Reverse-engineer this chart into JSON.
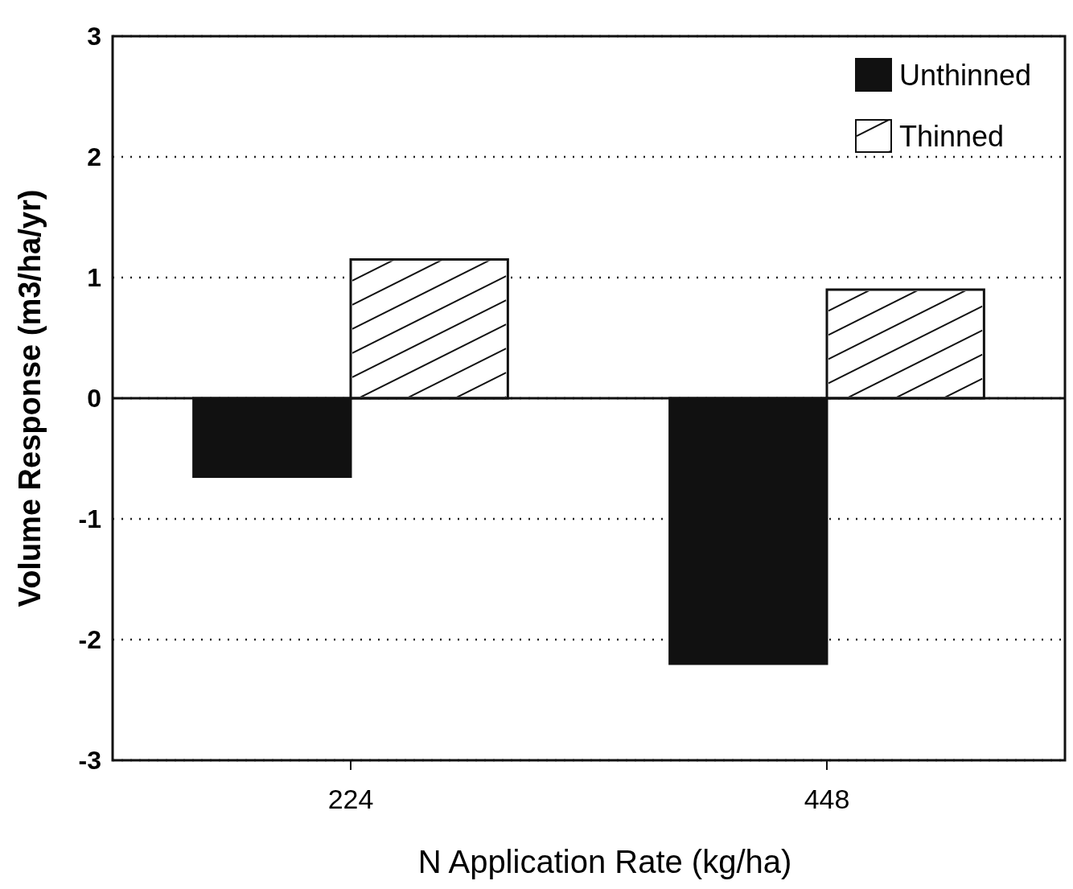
{
  "chart_data": {
    "type": "bar",
    "xlabel": "N Application Rate (kg/ha)",
    "ylabel": "Volume Response (m3/ha/yr)",
    "categories": [
      "224",
      "448"
    ],
    "series": [
      {
        "name": "Unthinned",
        "color": "#111111",
        "values": [
          -0.65,
          -2.2
        ]
      },
      {
        "name": "Thinned",
        "color": "#ffffff",
        "values": [
          1.15,
          0.9
        ]
      }
    ],
    "ylim": [
      -3,
      3
    ],
    "yticks": [
      -3,
      -2,
      -1,
      0,
      1,
      2,
      3
    ],
    "grid": "y",
    "legend": "top right"
  }
}
